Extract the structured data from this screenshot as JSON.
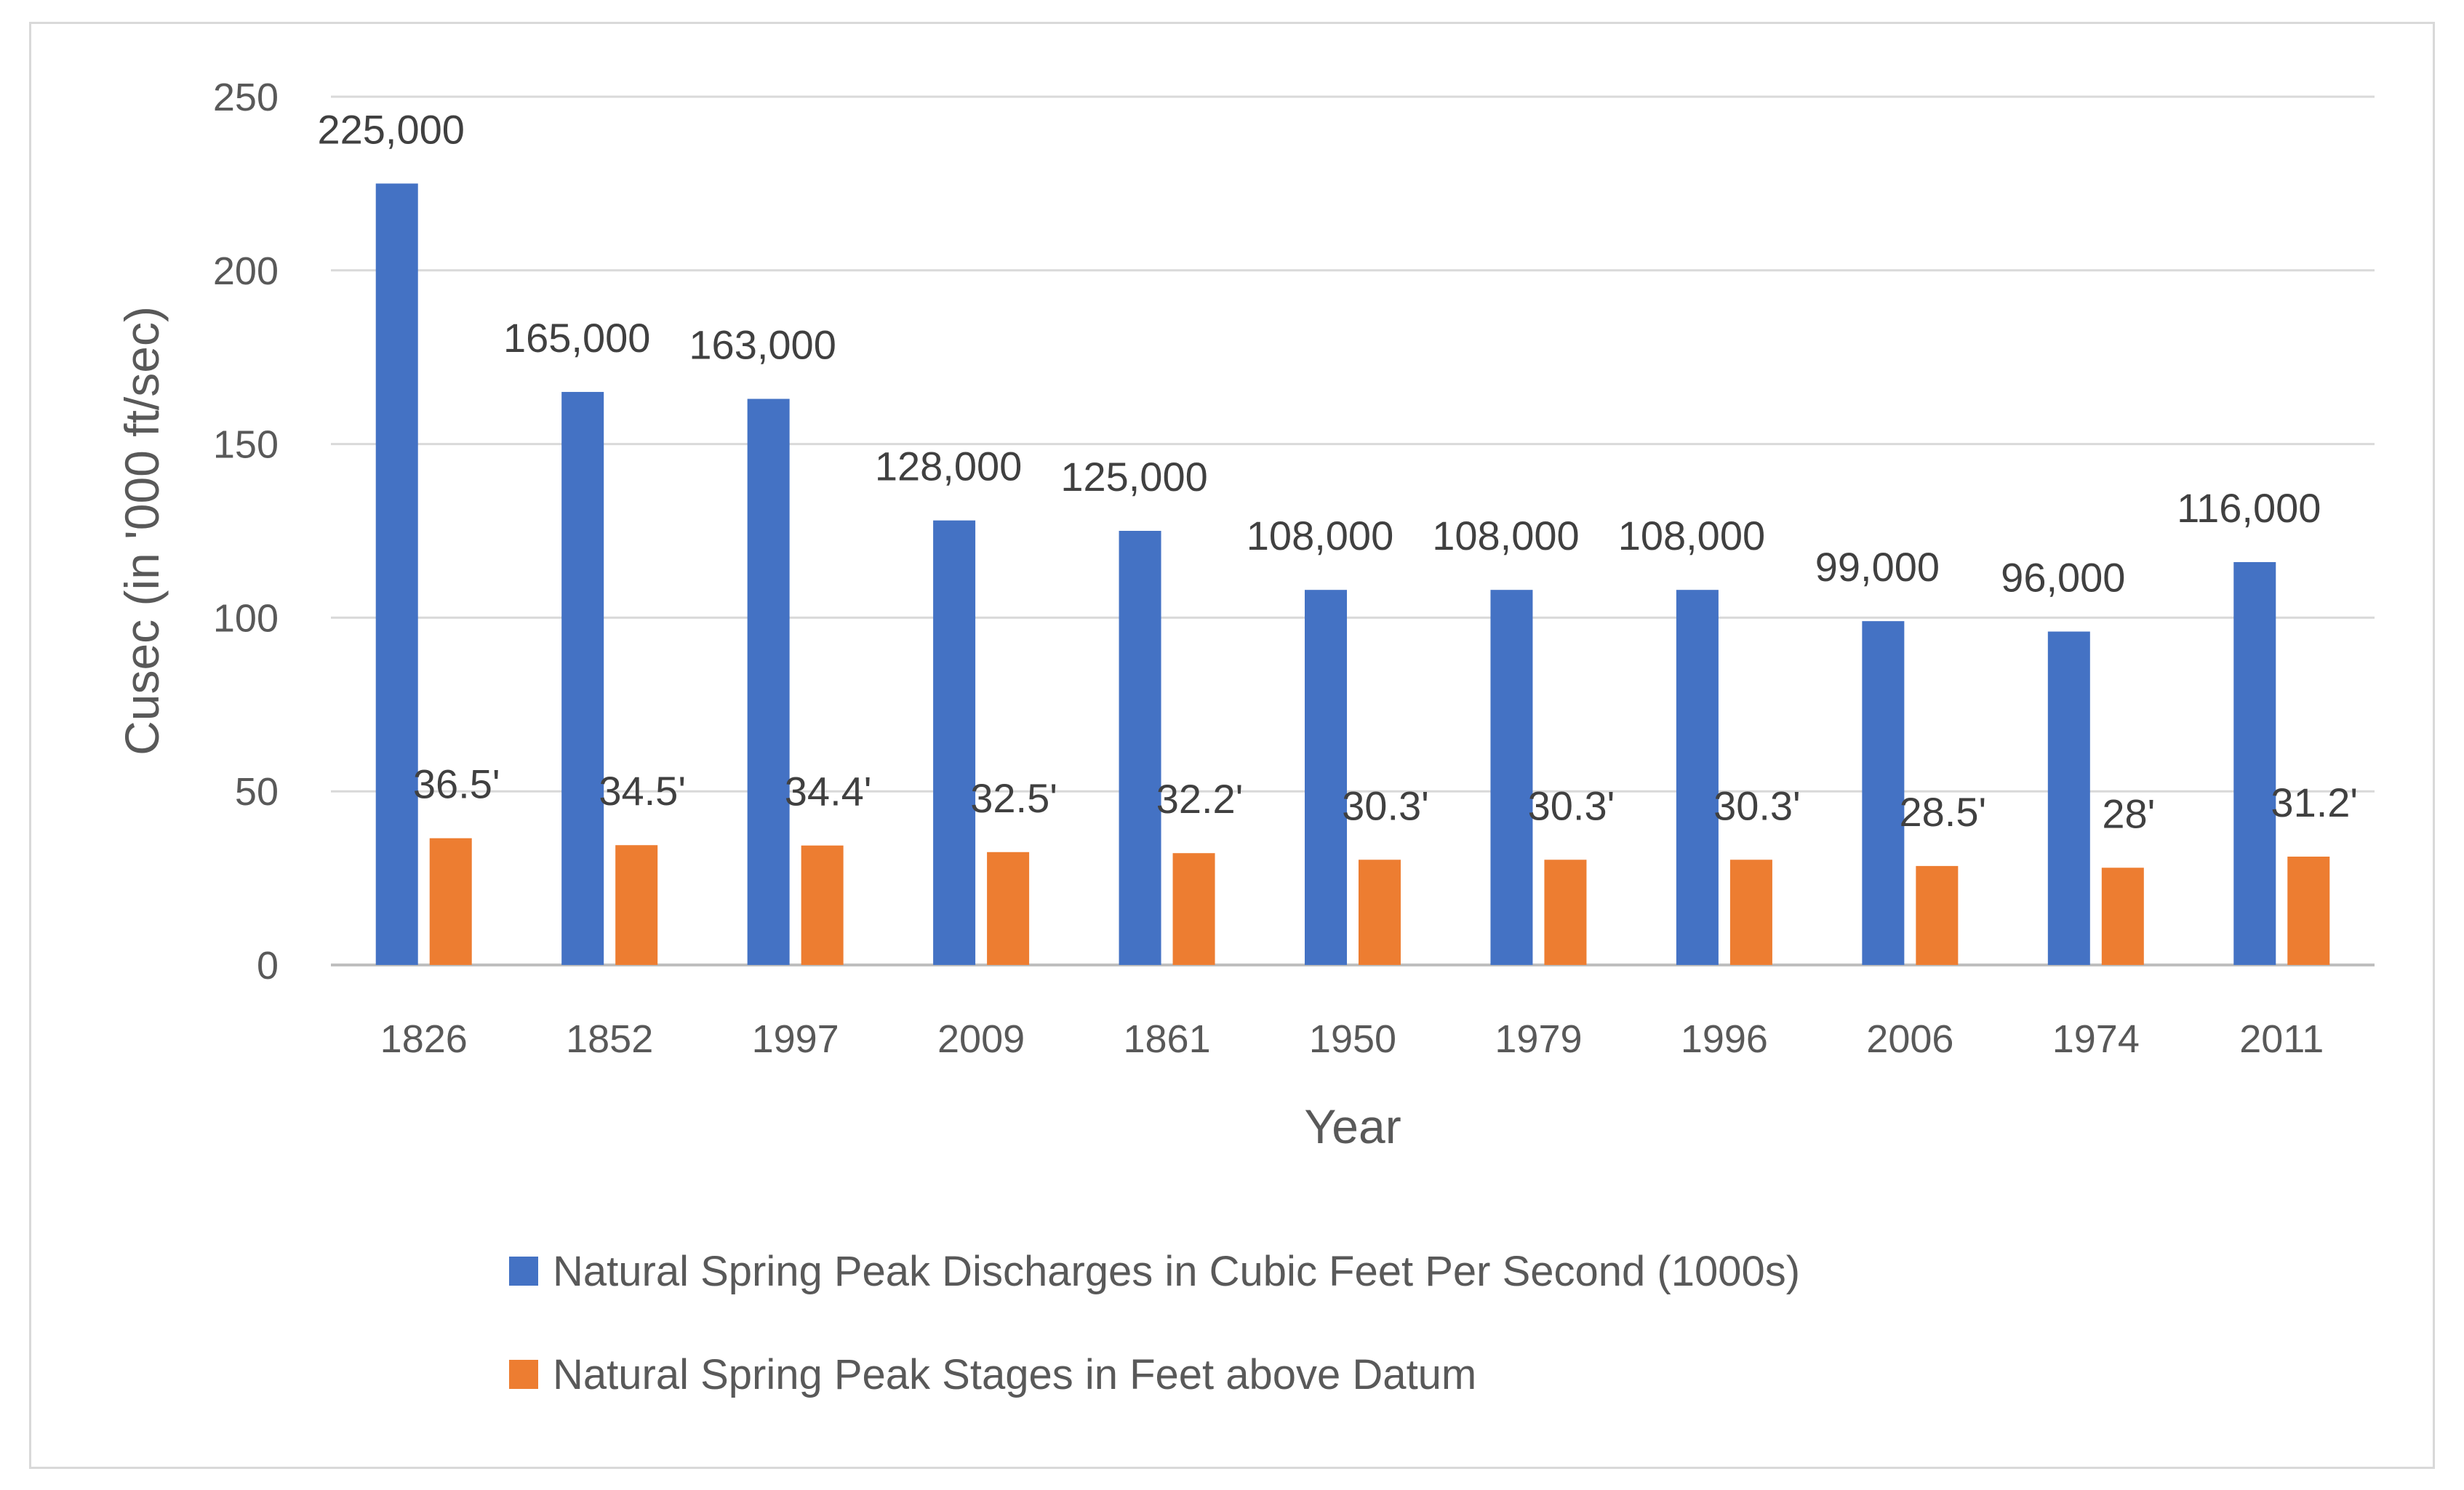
{
  "chart_data": {
    "type": "bar",
    "title": "",
    "xlabel": "Year",
    "ylabel": "Cusec (in '000 ft/sec)",
    "ylim": [
      0,
      250
    ],
    "yticks": [
      0,
      50,
      100,
      150,
      200,
      250
    ],
    "grid": true,
    "legend_position": "bottom",
    "categories": [
      "1826",
      "1852",
      "1997",
      "2009",
      "1861",
      "1950",
      "1979",
      "1996",
      "2006",
      "1974",
      "2011"
    ],
    "series": [
      {
        "name": "Natural Spring Peak Discharges in Cubic Feet Per Second (1000s)",
        "color": "#4472C4",
        "values": [
          225,
          165,
          163,
          128,
          125,
          108,
          108,
          108,
          99,
          96,
          116
        ],
        "labels": [
          "225,000",
          "165,000",
          "163,000",
          "128,000",
          "125,000",
          "108,000",
          "108,000",
          "108,000",
          "99,000",
          "96,000",
          "116,000"
        ]
      },
      {
        "name": "Natural Spring Peak Stages in Feet above Datum",
        "color": "#ED7D31",
        "values": [
          36.5,
          34.5,
          34.4,
          32.5,
          32.2,
          30.3,
          30.3,
          30.3,
          28.5,
          28,
          31.2
        ],
        "labels": [
          "36.5'",
          "34.5'",
          "34.4'",
          "32.5'",
          "32.2'",
          "30.3'",
          "30.3'",
          "30.3'",
          "28.5'",
          "28'",
          "31.2'"
        ]
      }
    ]
  }
}
